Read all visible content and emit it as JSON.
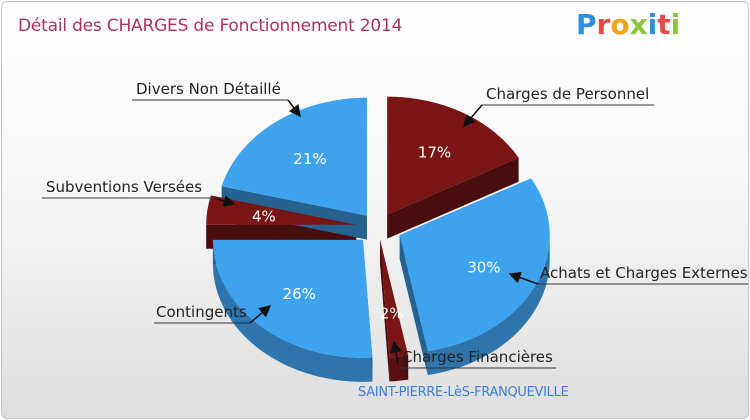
{
  "chart_data": {
    "type": "pie",
    "title": "Détail des CHARGES de Fonctionnement 2014",
    "subtitle": "SAINT-PIERRE-LèS-FRANQUEVILLE",
    "slices": [
      {
        "label": "Charges de Personnel",
        "value": 17,
        "pct_label": "17%",
        "color": "#7a1515"
      },
      {
        "label": "Achats et Charges Externes",
        "value": 30,
        "pct_label": "30%",
        "color": "#3ea3ef"
      },
      {
        "label": "Charges Financières",
        "value": 2,
        "pct_label": "2%",
        "color": "#7a1515"
      },
      {
        "label": "Contingents",
        "value": 26,
        "pct_label": "26%",
        "color": "#3ea3ef"
      },
      {
        "label": "Subventions Versées",
        "value": 4,
        "pct_label": "4%",
        "color": "#7a1515"
      },
      {
        "label": "Divers Non Détaillé",
        "value": 21,
        "pct_label": "21%",
        "color": "#3ea3ef"
      }
    ]
  },
  "logo": {
    "letters": [
      {
        "ch": "P",
        "color": "#2e8fe0"
      },
      {
        "ch": "r",
        "color": "#e84a4a"
      },
      {
        "ch": "o",
        "color": "#f2a21b"
      },
      {
        "ch": "x",
        "color": "#8cc63f"
      },
      {
        "ch": "i",
        "color": "#2e8fe0"
      },
      {
        "ch": "t",
        "color": "#e84a4a"
      },
      {
        "ch": "i",
        "color": "#8cc63f"
      }
    ]
  }
}
